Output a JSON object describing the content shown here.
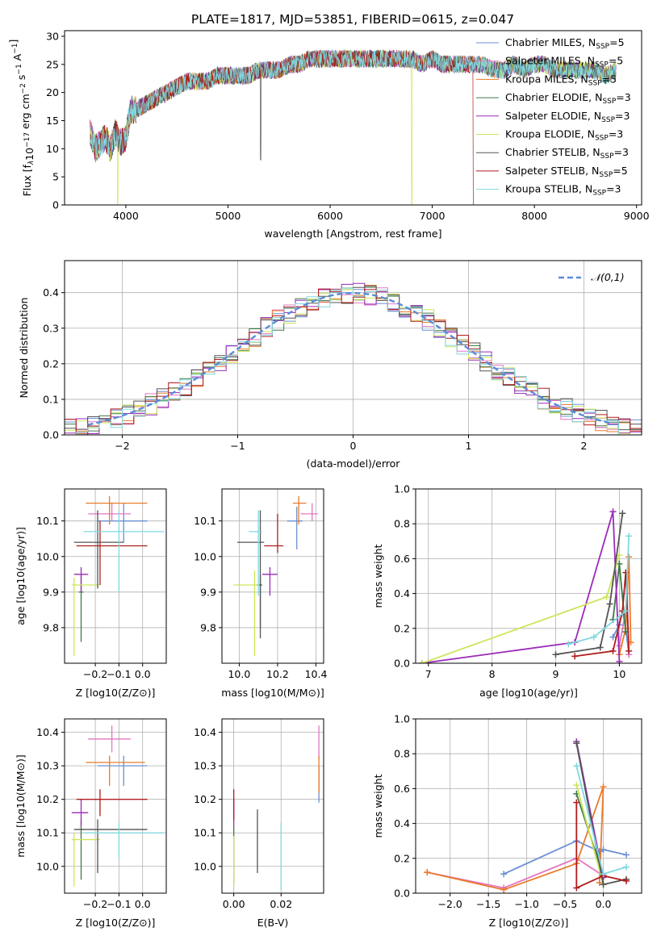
{
  "figure": {
    "title": "PLATE=1817, MJD=53851, FIBERID=0615, z=0.047"
  },
  "models": [
    {
      "name": "Chabrier MILES",
      "nssp": "5",
      "color": "#6a8fd6"
    },
    {
      "name": "Salpeter MILES",
      "nssp": "5",
      "color": "#e377c2"
    },
    {
      "name": "Kroupa MILES",
      "nssp": "5",
      "color": "#e87b2a"
    },
    {
      "name": "Chabrier ELODIE",
      "nssp": "3",
      "color": "#3f7a4a"
    },
    {
      "name": "Salpeter ELODIE",
      "nssp": "3",
      "color": "#9b2ab8"
    },
    {
      "name": "Kroupa ELODIE",
      "nssp": "3",
      "color": "#cde65a"
    },
    {
      "name": "Chabrier STELIB",
      "nssp": "3",
      "color": "#555555"
    },
    {
      "name": "Salpeter STELIB",
      "nssp": "5",
      "color": "#b01c1c"
    },
    {
      "name": "Kroupa STELIB",
      "nssp": "3",
      "color": "#7fd8e0"
    }
  ],
  "chart_data": [
    {
      "id": "spectrum",
      "type": "line",
      "title": "PLATE=1817, MJD=53851, FIBERID=0615, z=0.047",
      "xlabel": "wavelength [Angstrom, rest frame]",
      "ylabel": "Flux [fλ10^-17 erg cm^-2 s^-1 A^-1]",
      "xlim": [
        3400,
        9050
      ],
      "ylim": [
        0,
        31
      ],
      "xticks": [
        4000,
        5000,
        6000,
        7000,
        8000,
        9000
      ],
      "yticks": [
        0,
        5,
        10,
        15,
        20,
        25,
        30
      ],
      "grid": false,
      "legend_position": "top-right",
      "envelope": {
        "x": [
          3650,
          3700,
          3750,
          3800,
          3850,
          3900,
          3950,
          4000,
          4050,
          4100,
          4200,
          4300,
          4400,
          4500,
          4600,
          4700,
          4800,
          4900,
          5000,
          5100,
          5200,
          5300,
          5400,
          5500,
          5600,
          5700,
          5800,
          5900,
          6000,
          6100,
          6200,
          6300,
          6400,
          6500,
          6600,
          6700,
          6800,
          6900,
          7000,
          7100,
          7200,
          7300,
          7400,
          7500,
          7600,
          7700,
          7800,
          7900,
          8000,
          8100,
          8200,
          8300,
          8400,
          8500,
          8600,
          8700,
          8800
        ],
        "y": [
          13,
          10,
          11,
          12,
          10,
          13,
          11,
          12,
          17,
          17,
          18,
          19,
          20,
          21,
          22,
          22,
          22,
          23,
          23,
          23,
          23,
          24,
          24,
          24,
          25,
          25,
          26,
          26,
          26,
          26,
          26,
          26,
          26,
          26,
          26,
          26,
          26,
          25,
          26,
          25,
          25,
          25,
          25,
          25,
          24,
          24,
          25,
          24,
          25,
          25,
          24,
          24,
          24,
          24,
          24,
          23,
          24
        ]
      },
      "features": [
        {
          "name": "Salpeter STELIB",
          "x_start": 7400,
          "note": "drops to 0"
        },
        {
          "name": "Kroupa ELODIE",
          "x": 6800,
          "note": "dip to 0"
        },
        {
          "name": "Kroupa ELODIE",
          "x": 3920,
          "note": "dip to 0"
        },
        {
          "name": "Chabrier STELIB",
          "x": 5320,
          "note": "dip to 8"
        }
      ]
    },
    {
      "id": "residuals",
      "type": "histogram",
      "xlabel": "(data-model)/error",
      "ylabel": "Normed distribution",
      "xlim": [
        -2.5,
        2.5
      ],
      "ylim": [
        0,
        0.49
      ],
      "xticks": [
        -2,
        -1,
        0,
        1,
        2
      ],
      "yticks": [
        0.0,
        0.1,
        0.2,
        0.3,
        0.4
      ],
      "grid": true,
      "legend": {
        "label": "𝒩(0,1)",
        "color": "#5b8bd6",
        "style": "dashed",
        "position": "top-right"
      },
      "bin_width": 0.1,
      "bin_start": -2.5
    },
    {
      "id": "age-vs-z",
      "type": "errorbar",
      "xlabel": "Z [log10(Z/Z⊙)]",
      "ylabel": "age [log10(age/yr)]",
      "xlim": [
        -0.33,
        0.1
      ],
      "ylim": [
        9.7,
        10.19
      ],
      "xticks": [
        -0.2,
        -0.1,
        0.0
      ],
      "yticks": [
        9.8,
        9.9,
        10.0,
        10.1
      ],
      "grid": true,
      "points": [
        {
          "model": "Chabrier MILES",
          "x": -0.08,
          "y": 10.1,
          "xerr": [
            0.11,
            0.1
          ],
          "yerr": [
            0.06,
            0.05
          ]
        },
        {
          "model": "Salpeter MILES",
          "x": -0.13,
          "y": 10.12,
          "xerr": [
            0.1,
            0.08
          ],
          "yerr": [
            0.02,
            0.03
          ]
        },
        {
          "model": "Kroupa MILES",
          "x": -0.14,
          "y": 10.15,
          "xerr": [
            0.1,
            0.16
          ],
          "yerr": [
            0.06,
            0.02
          ]
        },
        {
          "model": "Chabrier ELODIE",
          "x": -0.26,
          "y": 9.9,
          "xerr": [
            0.01,
            0.01
          ],
          "yerr": [
            0.14,
            0.05
          ]
        },
        {
          "model": "Salpeter ELODIE",
          "x": -0.26,
          "y": 9.95,
          "xerr": [
            0.03,
            0.03
          ],
          "yerr": [
            0.05,
            0.02
          ]
        },
        {
          "model": "Kroupa ELODIE",
          "x": -0.29,
          "y": 9.92,
          "xerr": [
            0.01,
            0.11
          ],
          "yerr": [
            0.2,
            0.02
          ]
        },
        {
          "model": "Chabrier STELIB",
          "x": -0.19,
          "y": 10.04,
          "xerr": [
            0.1,
            0.11
          ],
          "yerr": [
            0.13,
            0.09
          ]
        },
        {
          "model": "Salpeter STELIB",
          "x": -0.18,
          "y": 10.03,
          "xerr": [
            0.1,
            0.2
          ],
          "yerr": [
            0.11,
            0.07
          ]
        },
        {
          "model": "Kroupa STELIB",
          "x": -0.1,
          "y": 10.07,
          "xerr": [
            0.15,
            0.19
          ],
          "yerr": [
            0.17,
            0.06
          ]
        }
      ]
    },
    {
      "id": "age-vs-mass",
      "type": "errorbar",
      "xlabel": "mass [log10(M/M⊙)]",
      "ylabel": "",
      "xlim": [
        9.91,
        10.44
      ],
      "ylim": [
        9.7,
        10.19
      ],
      "xticks": [
        10.0,
        10.2,
        10.4
      ],
      "yticks": [
        9.8,
        9.9,
        10.0,
        10.1
      ],
      "grid": true,
      "points": [
        {
          "model": "Chabrier MILES",
          "x": 10.3,
          "y": 10.1,
          "xerr": [
            0.05,
            0.03
          ],
          "yerr": [
            0.08,
            0.04
          ]
        },
        {
          "model": "Salpeter MILES",
          "x": 10.38,
          "y": 10.12,
          "xerr": [
            0.06,
            0.03
          ],
          "yerr": [
            0.02,
            0.03
          ]
        },
        {
          "model": "Kroupa MILES",
          "x": 10.31,
          "y": 10.15,
          "xerr": [
            0.03,
            0.04
          ],
          "yerr": [
            0.06,
            0.02
          ]
        },
        {
          "model": "Chabrier ELODIE",
          "x": 10.11,
          "y": 9.92,
          "xerr": [
            0.02,
            0.01
          ],
          "yerr": [
            0.12,
            0.03
          ]
        },
        {
          "model": "Salpeter ELODIE",
          "x": 10.16,
          "y": 9.95,
          "xerr": [
            0.04,
            0.04
          ],
          "yerr": [
            0.06,
            0.02
          ]
        },
        {
          "model": "Kroupa ELODIE",
          "x": 10.08,
          "y": 9.92,
          "xerr": [
            0.11,
            0.02
          ],
          "yerr": [
            0.2,
            0.04
          ]
        },
        {
          "model": "Chabrier STELIB",
          "x": 10.11,
          "y": 10.04,
          "xerr": [
            0.12,
            0.02
          ],
          "yerr": [
            0.27,
            0.09
          ]
        },
        {
          "model": "Salpeter STELIB",
          "x": 10.2,
          "y": 10.03,
          "xerr": [
            0.07,
            0.03
          ],
          "yerr": [
            0.02,
            0.09
          ]
        },
        {
          "model": "Kroupa STELIB",
          "x": 10.1,
          "y": 10.07,
          "xerr": [
            0.05,
            0.02
          ],
          "yerr": [
            0.18,
            0.06
          ]
        }
      ]
    },
    {
      "id": "massweight-vs-age",
      "type": "line",
      "xlabel": "age [log10(age/yr)]",
      "ylabel": "mass weight",
      "xlim": [
        6.8,
        10.35
      ],
      "ylim": [
        0.0,
        1.0
      ],
      "xticks": [
        7,
        8,
        9,
        10
      ],
      "yticks": [
        0.0,
        0.2,
        0.4,
        0.6,
        0.8,
        1.0
      ],
      "grid": true,
      "series": [
        {
          "model": "Chabrier MILES",
          "x": [
            9.9,
            10.0,
            10.05,
            10.1,
            10.15
          ],
          "y": [
            0.15,
            0.22,
            0.3,
            0.2,
            0.05
          ]
        },
        {
          "model": "Salpeter MILES",
          "x": [
            10.0,
            10.1,
            10.12,
            10.15
          ],
          "y": [
            0.1,
            0.3,
            0.4,
            0.05
          ]
        },
        {
          "model": "Kroupa MILES",
          "x": [
            10.0,
            10.1,
            10.15,
            10.18
          ],
          "y": [
            0.05,
            0.2,
            0.61,
            0.12
          ]
        },
        {
          "model": "Chabrier ELODIE",
          "x": [
            9.9,
            10.0,
            10.1
          ],
          "y": [
            0.25,
            0.57,
            0.18
          ]
        },
        {
          "model": "Salpeter ELODIE",
          "x": [
            6.9,
            9.3,
            9.9,
            10.0
          ],
          "y": [
            0.0,
            0.12,
            0.87,
            0.01
          ]
        },
        {
          "model": "Kroupa ELODIE",
          "x": [
            6.9,
            9.8,
            10.0
          ],
          "y": [
            0.0,
            0.38,
            0.62
          ]
        },
        {
          "model": "Chabrier STELIB",
          "x": [
            9.0,
            9.7,
            9.85,
            10.05
          ],
          "y": [
            0.05,
            0.09,
            0.34,
            0.86
          ]
        },
        {
          "model": "Salpeter STELIB",
          "x": [
            9.3,
            9.9,
            10.05,
            10.1,
            10.15
          ],
          "y": [
            0.04,
            0.07,
            0.3,
            0.52,
            0.07
          ]
        },
        {
          "model": "Kroupa STELIB",
          "x": [
            9.2,
            9.6,
            10.1,
            10.15
          ],
          "y": [
            0.11,
            0.15,
            0.3,
            0.73
          ]
        }
      ]
    },
    {
      "id": "mass-vs-z",
      "type": "errorbar",
      "xlabel": "Z [log10(Z/Z⊙)]",
      "ylabel": "mass [log10(M/M⊙)]",
      "xlim": [
        -0.33,
        0.1
      ],
      "ylim": [
        9.92,
        10.44
      ],
      "xticks": [
        -0.2,
        -0.1,
        0.0
      ],
      "yticks": [
        10.0,
        10.1,
        10.2,
        10.3,
        10.4
      ],
      "grid": true,
      "points": [
        {
          "model": "Chabrier MILES",
          "x": -0.08,
          "y": 10.3,
          "xerr": [
            0.11,
            0.1
          ],
          "yerr": [
            0.06,
            0.03
          ]
        },
        {
          "model": "Salpeter MILES",
          "x": -0.13,
          "y": 10.38,
          "xerr": [
            0.1,
            0.08
          ],
          "yerr": [
            0.04,
            0.04
          ]
        },
        {
          "model": "Kroupa MILES",
          "x": -0.14,
          "y": 10.31,
          "xerr": [
            0.1,
            0.15
          ],
          "yerr": [
            0.07,
            0.02
          ]
        },
        {
          "model": "Chabrier ELODIE",
          "x": -0.26,
          "y": 10.11,
          "xerr": [
            0.01,
            0.01
          ],
          "yerr": [
            0.15,
            0.03
          ]
        },
        {
          "model": "Salpeter ELODIE",
          "x": -0.26,
          "y": 10.16,
          "xerr": [
            0.04,
            0.03
          ],
          "yerr": [
            0.04,
            0.04
          ]
        },
        {
          "model": "Kroupa ELODIE",
          "x": -0.29,
          "y": 10.08,
          "xerr": [
            0.01,
            0.11
          ],
          "yerr": [
            0.14,
            0.02
          ]
        },
        {
          "model": "Chabrier STELIB",
          "x": -0.19,
          "y": 10.11,
          "xerr": [
            0.1,
            0.21
          ],
          "yerr": [
            0.13,
            0.03
          ]
        },
        {
          "model": "Salpeter STELIB",
          "x": -0.18,
          "y": 10.2,
          "xerr": [
            0.1,
            0.2
          ],
          "yerr": [
            0.05,
            0.03
          ]
        },
        {
          "model": "Kroupa STELIB",
          "x": -0.1,
          "y": 10.1,
          "xerr": [
            0.15,
            0.19
          ],
          "yerr": [
            0.08,
            0.03
          ]
        }
      ]
    },
    {
      "id": "mass-vs-ebv",
      "type": "errorbar",
      "xlabel": "E(B-V)",
      "ylabel": "",
      "xlim": [
        -0.005,
        0.038
      ],
      "ylim": [
        9.92,
        10.44
      ],
      "xticks": [
        0.0,
        0.02
      ],
      "yticks": [
        10.0,
        10.1,
        10.2,
        10.3,
        10.4
      ],
      "grid": true,
      "points": [
        {
          "model": "Chabrier MILES",
          "x": 0.036,
          "y": 10.3,
          "xerr": [
            0,
            0
          ],
          "yerr": [
            0.11,
            0.0
          ]
        },
        {
          "model": "Salpeter MILES",
          "x": 0.036,
          "y": 10.38,
          "xerr": [
            0,
            0
          ],
          "yerr": [
            0.06,
            0.04
          ]
        },
        {
          "model": "Kroupa MILES",
          "x": 0.036,
          "y": 10.31,
          "xerr": [
            0,
            0
          ],
          "yerr": [
            0.09,
            0.02
          ]
        },
        {
          "model": "Chabrier ELODIE",
          "x": 0.0,
          "y": 10.11,
          "xerr": [
            0,
            0
          ],
          "yerr": [
            0.16,
            0.01
          ]
        },
        {
          "model": "Salpeter ELODIE",
          "x": 0.0,
          "y": 10.16,
          "xerr": [
            0,
            0
          ],
          "yerr": [
            0.04,
            0.04
          ]
        },
        {
          "model": "Kroupa ELODIE",
          "x": 0.0,
          "y": 10.08,
          "xerr": [
            0,
            0
          ],
          "yerr": [
            0.14,
            0.01
          ]
        },
        {
          "model": "Chabrier STELIB",
          "x": 0.01,
          "y": 10.11,
          "xerr": [
            0,
            0
          ],
          "yerr": [
            0.13,
            0.06
          ]
        },
        {
          "model": "Salpeter STELIB",
          "x": 0.0,
          "y": 10.2,
          "xerr": [
            0,
            0
          ],
          "yerr": [
            0.06,
            0.03
          ]
        },
        {
          "model": "Kroupa STELIB",
          "x": 0.02,
          "y": 10.1,
          "xerr": [
            0,
            0
          ],
          "yerr": [
            0.17,
            0.03
          ]
        }
      ]
    },
    {
      "id": "massweight-vs-z",
      "type": "line",
      "xlabel": "Z [log10(Z/Z⊙)]",
      "ylabel": "mass weight",
      "xlim": [
        -2.45,
        0.5
      ],
      "ylim": [
        0.0,
        1.0
      ],
      "xticks": [
        -2.0,
        -1.5,
        -1.0,
        -0.5,
        0.0
      ],
      "yticks": [
        0.0,
        0.2,
        0.4,
        0.6,
        0.8,
        1.0
      ],
      "grid": true,
      "series": [
        {
          "model": "Chabrier MILES",
          "x": [
            -1.3,
            -0.35,
            -0.05,
            0.0,
            0.3
          ],
          "y": [
            0.11,
            0.3,
            0.24,
            0.25,
            0.22
          ]
        },
        {
          "model": "Salpeter MILES",
          "x": [
            -2.3,
            -1.3,
            -0.35,
            0.0
          ],
          "y": [
            0.12,
            0.03,
            0.2,
            0.1
          ]
        },
        {
          "model": "Kroupa MILES",
          "x": [
            -2.3,
            -1.3,
            -0.35,
            0.0,
            -0.05
          ],
          "y": [
            0.12,
            0.02,
            0.17,
            0.61,
            0.06
          ]
        },
        {
          "model": "Chabrier ELODIE",
          "x": [
            -0.35,
            0.0
          ],
          "y": [
            0.57,
            0.1
          ]
        },
        {
          "model": "Salpeter ELODIE",
          "x": [
            -0.35,
            0.0
          ],
          "y": [
            0.87,
            0.09
          ]
        },
        {
          "model": "Kroupa ELODIE",
          "x": [
            -0.35,
            0.0
          ],
          "y": [
            0.62,
            0.05
          ]
        },
        {
          "model": "Chabrier STELIB",
          "x": [
            -0.35,
            0.0,
            0.3
          ],
          "y": [
            0.86,
            0.05,
            0.08
          ]
        },
        {
          "model": "Salpeter STELIB",
          "x": [
            -0.35,
            -0.35,
            0.0,
            0.3
          ],
          "y": [
            0.52,
            0.03,
            0.1,
            0.07
          ]
        },
        {
          "model": "Kroupa STELIB",
          "x": [
            -0.35,
            0.0,
            0.3
          ],
          "y": [
            0.73,
            0.11,
            0.15
          ]
        }
      ]
    }
  ]
}
